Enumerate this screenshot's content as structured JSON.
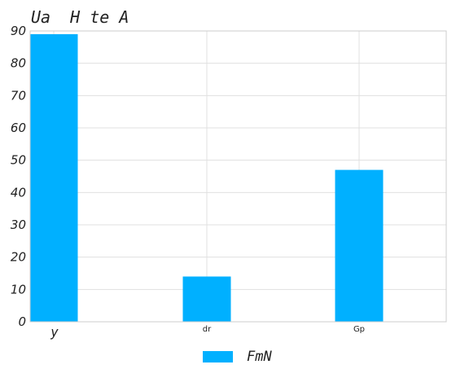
{
  "chart_data": {
    "type": "bar",
    "title": "Ua  H te A",
    "xlabel": "",
    "ylabel": "",
    "categories": [
      "y",
      "dr",
      "Gp"
    ],
    "series": [
      {
        "name": "FmN",
        "values": [
          89,
          14,
          47
        ],
        "color": "#00b0ff"
      }
    ],
    "ylim": [
      0,
      90
    ],
    "yticks": [
      0,
      10,
      20,
      30,
      40,
      50,
      60,
      70,
      80,
      90
    ],
    "grid": true,
    "legend_position": "bottom-center"
  }
}
